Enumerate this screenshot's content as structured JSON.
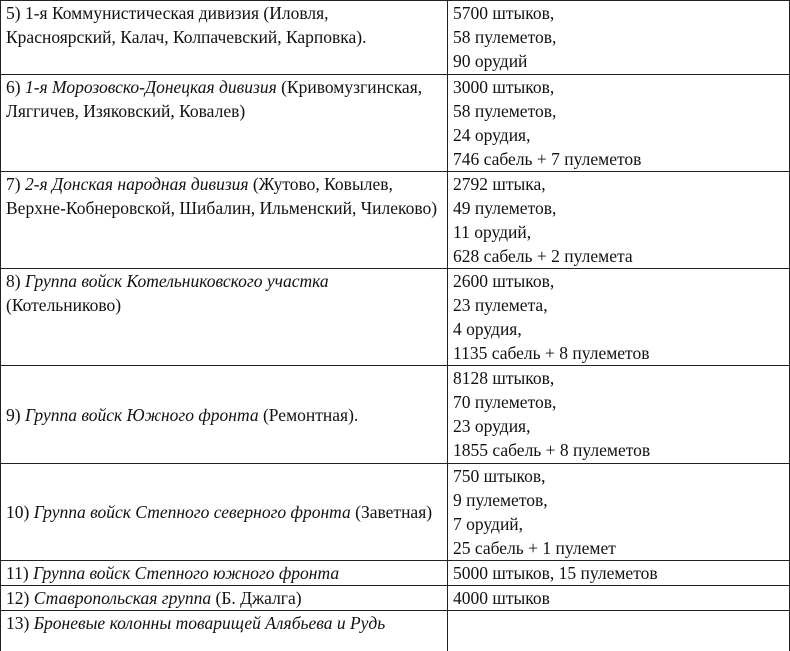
{
  "table": {
    "rows": [
      {
        "left": [
          "5) 1-я Коммунистическая дивизия (Иловля, Красноярский, Калач, Колпачевский, Карповка)."
        ],
        "right": [
          "5700 штыков,",
          "58 пулеметов,",
          "90 орудий"
        ]
      },
      {
        "left": [
          "6) ",
          "1-я Морозовско-Донецкая дивизия",
          " (Кривомузгинская, Ляггичев, Изяковский, Ковалев)"
        ],
        "right": [
          "3000 штыков,",
          "58 пулеметов,",
          "24 орудия,",
          "746 сабель + 7 пулеметов"
        ]
      },
      {
        "left": [
          "7) ",
          "2-я Донская народная дивизия",
          " (Жутово, Ковылев, Верхне-Кобнеровской, Шибалин, Ильменский, Чилеково)"
        ],
        "right": [
          "2792 штыка,",
          "49 пулеметов,",
          "11 орудий,",
          "628 сабель + 2 пулемета"
        ]
      },
      {
        "left": [
          "8) ",
          "Группа войск Котельниковского участка",
          " (Котельниково)"
        ],
        "right": [
          "2600 штыков,",
          "23 пулемета,",
          "4 орудия,",
          "1135 сабель + 8 пулеметов"
        ]
      },
      {
        "left": [
          "9) ",
          "Группа войск Южного фронта",
          " (Ремонтная)."
        ],
        "right": [
          "8128 штыков,",
          "70 пулеметов,",
          "23 орудия,",
          "1855 сабель + 8 пулеметов"
        ]
      },
      {
        "left": [
          "10) ",
          "Группа войск Степного северного фронта",
          " (Заветная)"
        ],
        "right": [
          "750 штыков,",
          "9 пулеметов,",
          "7 орудий,",
          "25 сабель + 1 пулемет"
        ]
      },
      {
        "left": [
          "11) ",
          "Группа войск Степного южного фронта"
        ],
        "right": [
          "5000 штыков, 15 пулеметов"
        ]
      },
      {
        "left": [
          "12) ",
          "Ставропольская группа",
          " (Б. Джалга)"
        ],
        "right": [
          "4000 штыков"
        ]
      },
      {
        "left": [
          "13) ",
          "Броневые колонны товарищей Алябьева и Рудь"
        ],
        "right": []
      }
    ]
  }
}
